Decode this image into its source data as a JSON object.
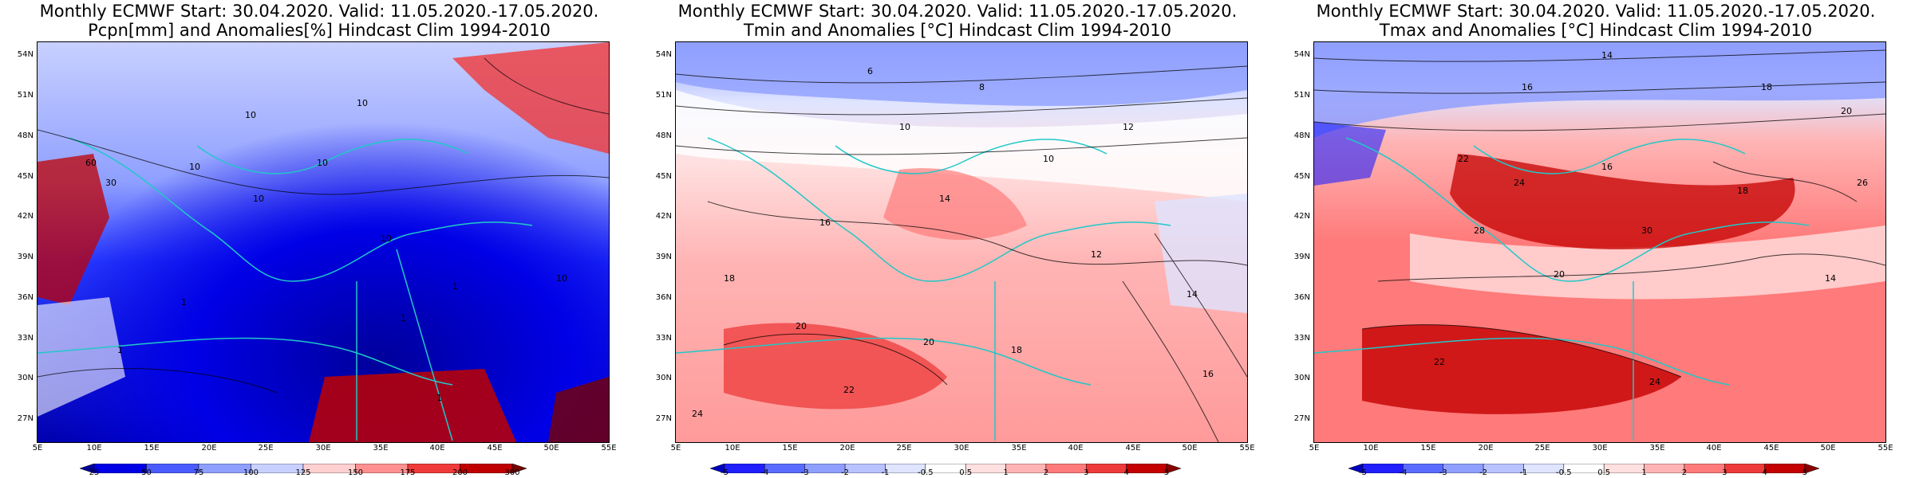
{
  "panels": [
    {
      "title1": "Monthly ECMWF Start: 30.04.2020. Valid: 11.05.2020.-17.05.2020.",
      "title2": "Pcpn[mm] and Anomalies[%] Hindcast Clim 1994-2010",
      "colorbar_ticks": [
        "25",
        "50",
        "75",
        "100",
        "125",
        "150",
        "175",
        "200",
        "300"
      ],
      "colorbar_colors": [
        "#00009a",
        "#0000e6",
        "#4a5cff",
        "#8f9fff",
        "#c8d0ff",
        "#ffd0d0",
        "#ff9090",
        "#f03a3a",
        "#c00000",
        "#7a0000"
      ],
      "contour_labels": [
        "60",
        "30",
        "10",
        "10",
        "10",
        "10",
        "10",
        "10",
        "10",
        "1",
        "1",
        "1",
        "1",
        "1"
      ]
    },
    {
      "title1": "Monthly ECMWF Start: 30.04.2020. Valid: 11.05.2020.-17.05.2020.",
      "title2": "Tmin and Anomalies [°C] Hindcast Clim 1994-2010",
      "colorbar_ticks": [
        "-5",
        "-4",
        "-3",
        "-2",
        "-1",
        "-0.5",
        "0.5",
        "1",
        "2",
        "3",
        "4",
        "5"
      ],
      "colorbar_colors": [
        "#0000c0",
        "#2020ff",
        "#5a6cff",
        "#8f9fff",
        "#b8c2ff",
        "#dfe4ff",
        "#ffffff",
        "#ffe0e0",
        "#ffb4b4",
        "#ff7a7a",
        "#ee3a3a",
        "#c40000",
        "#8a0000"
      ],
      "contour_labels": [
        "6",
        "8",
        "10",
        "10",
        "12",
        "14",
        "16",
        "18",
        "20",
        "22",
        "24",
        "20",
        "18",
        "16",
        "14",
        "12"
      ]
    },
    {
      "title1": "Monthly ECMWF Start: 30.04.2020. Valid: 11.05.2020.-17.05.2020.",
      "title2": "Tmax and Anomalies [°C] Hindcast Clim 1994-2010",
      "colorbar_ticks": [
        "-5",
        "-4",
        "-3",
        "-2",
        "-1",
        "-0.5",
        "0.5",
        "1",
        "2",
        "3",
        "4",
        "5"
      ],
      "colorbar_colors": [
        "#0000c0",
        "#2020ff",
        "#5a6cff",
        "#8f9fff",
        "#b8c2ff",
        "#dfe4ff",
        "#ffffff",
        "#ffe0e0",
        "#ffb4b4",
        "#ff7a7a",
        "#ee3a3a",
        "#c40000",
        "#8a0000"
      ],
      "contour_labels": [
        "14",
        "16",
        "18",
        "20",
        "22",
        "24",
        "26",
        "28",
        "30",
        "20",
        "22",
        "24",
        "18",
        "16",
        "14"
      ]
    }
  ],
  "lat_labels": [
    "54N",
    "51N",
    "48N",
    "45N",
    "42N",
    "39N",
    "36N",
    "33N",
    "30N",
    "27N"
  ],
  "lon_labels": [
    "5E",
    "10E",
    "15E",
    "20E",
    "25E",
    "30E",
    "35E",
    "40E",
    "45E",
    "50E",
    "55E"
  ]
}
